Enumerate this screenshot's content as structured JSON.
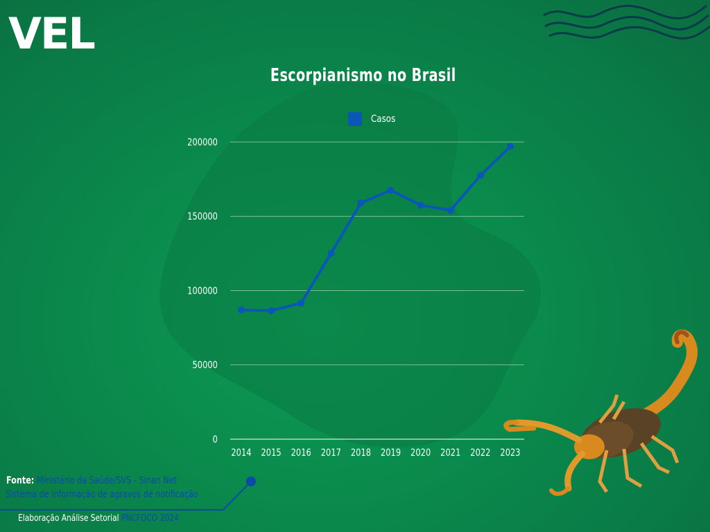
{
  "logo": {
    "text": "VEL"
  },
  "source": {
    "label": "Fonte:",
    "text_line1": "Ministério da Saúde/SVS  - Sinan Net",
    "text_line2": "Sistema de informação de agravos de notificação"
  },
  "credit": {
    "prefix": "Elaboração Análise Setorial",
    "brand": "PNCFOCO 2024"
  },
  "colors": {
    "line": "#0b57b8",
    "background": "#0a8a4c",
    "blob": "#0b7a44"
  },
  "chart_data": {
    "type": "line",
    "title": "Escorpianismo no Brasil",
    "xlabel": "",
    "ylabel": "",
    "categories": [
      "2014",
      "2015",
      "2016",
      "2017",
      "2018",
      "2019",
      "2020",
      "2021",
      "2022",
      "2023"
    ],
    "series": [
      {
        "name": "Casos",
        "values": [
          87000,
          86500,
          91500,
          125000,
          159000,
          167500,
          157500,
          154000,
          177500,
          197000
        ]
      }
    ],
    "y_ticks": [
      "0",
      "50000",
      "100000",
      "150000",
      "200000"
    ],
    "ylim": [
      0,
      200000
    ],
    "grid": true,
    "legend_position": "top-center"
  }
}
